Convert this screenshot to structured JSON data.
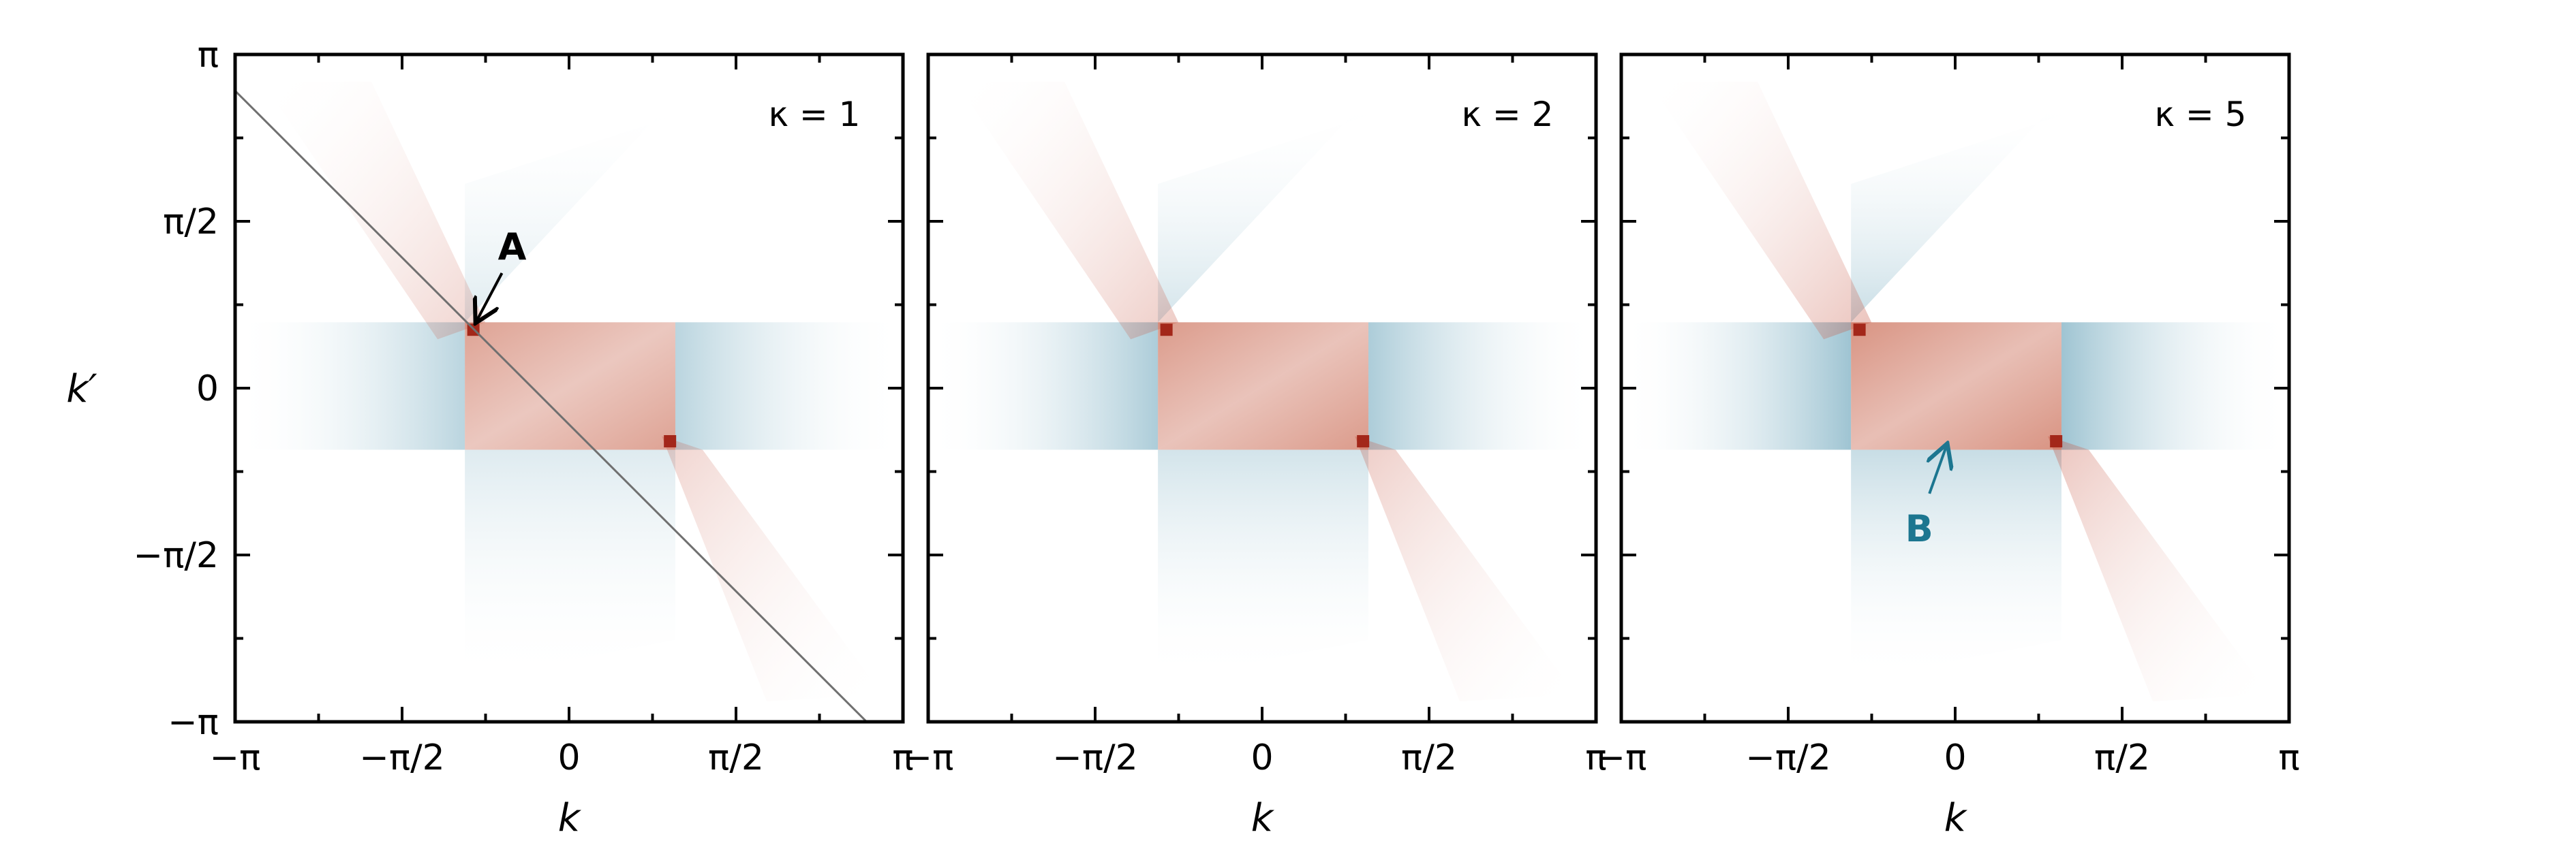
{
  "chart_data": {
    "type": "heatmap",
    "colormap": {
      "positive": "#b3301e",
      "negative": "#2e7f9e",
      "neutral": "#ffffff"
    },
    "x_axis": {
      "label": "k",
      "range": [
        "-π",
        "π"
      ],
      "ticks": [
        "−π",
        "−π/2",
        "0",
        "π/2",
        "π"
      ]
    },
    "y_axis": {
      "label": "k′",
      "range": [
        "-π",
        "π"
      ],
      "ticks": [
        "−π",
        "−π/2",
        "0",
        "π/2",
        "π"
      ]
    },
    "panels": [
      {
        "title": "κ = 1",
        "label_parts": {
          "symbol": "κ",
          "eq": "=",
          "value": "1"
        },
        "diagonal_line": {
          "from": [
            -3.1416,
            2.8
          ],
          "to": [
            2.8,
            -3.1416
          ],
          "color": "#707070"
        },
        "annotation": {
          "text": "A",
          "color": "#000000",
          "point": [
            -0.92,
            0.57
          ]
        },
        "hotspots": [
          [
            -0.9,
            0.55
          ],
          [
            0.95,
            -0.5
          ]
        ]
      },
      {
        "title": "κ = 2",
        "label_parts": {
          "symbol": "κ",
          "eq": "=",
          "value": "2"
        },
        "diagonal_line": null,
        "annotation": null,
        "hotspots": [
          [
            -0.9,
            0.55
          ],
          [
            0.95,
            -0.5
          ]
        ]
      },
      {
        "title": "κ = 5",
        "label_parts": {
          "symbol": "κ",
          "eq": "=",
          "value": "5"
        },
        "diagonal_line": null,
        "annotation": {
          "text": "B",
          "color": "#1c7690",
          "point": [
            -0.05,
            -0.48
          ]
        },
        "hotspots": [
          [
            -0.9,
            0.55
          ],
          [
            0.95,
            -0.5
          ]
        ]
      }
    ]
  }
}
